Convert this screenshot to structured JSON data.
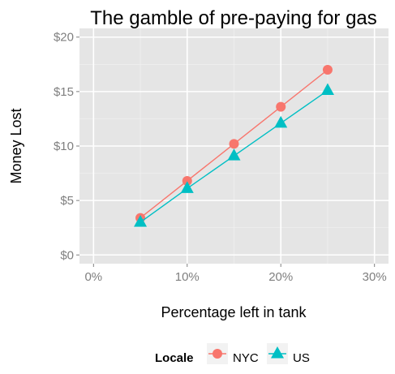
{
  "chart_data": {
    "type": "line",
    "title": "The gamble of pre-paying for gas",
    "xlabel": "Percentage left in tank",
    "ylabel": "Money Lost",
    "x": [
      5,
      10,
      15,
      20,
      25
    ],
    "xlim": [
      -1.5,
      31.5
    ],
    "ylim": [
      -0.8,
      20.8
    ],
    "xticks": [
      0,
      10,
      20,
      30
    ],
    "xtick_labels": [
      "0%",
      "10%",
      "20%",
      "30%"
    ],
    "yticks": [
      0,
      5,
      10,
      15,
      20
    ],
    "ytick_labels": [
      "$0",
      "$5",
      "$10",
      "$15",
      "$20"
    ],
    "grid": true,
    "legend": {
      "title": "Locale",
      "position": "bottom"
    },
    "series": [
      {
        "name": "NYC",
        "values": [
          3.4,
          6.8,
          10.2,
          13.6,
          17.0
        ],
        "color": "#f8766d",
        "marker": "circle"
      },
      {
        "name": "US",
        "values": [
          3.0,
          6.1,
          9.1,
          12.1,
          15.1
        ],
        "color": "#00bfc4",
        "marker": "triangle"
      }
    ]
  }
}
